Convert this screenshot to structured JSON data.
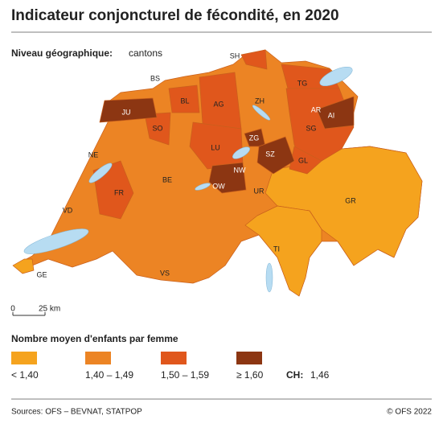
{
  "header": {
    "title": "Indicateur conjoncturel de fécondité, en 2020",
    "subtitle_label": "Niveau géographique:",
    "subtitle_value": "cantons"
  },
  "map": {
    "cantons": [
      "SH",
      "BS",
      "BL",
      "AG",
      "ZH",
      "TG",
      "JU",
      "SO",
      "AR",
      "AI",
      "SG",
      "LU",
      "ZG",
      "SZ",
      "NE",
      "BE",
      "GL",
      "NW",
      "OW",
      "FR",
      "UR",
      "GR",
      "VD",
      "TI",
      "VS",
      "GE"
    ],
    "scale": {
      "start": "0",
      "end": "25 km"
    }
  },
  "legend": {
    "title": "Nombre moyen d'enfants par femme",
    "classes": [
      {
        "label": "< 1,40",
        "color": "#f5a31e"
      },
      {
        "label": "1,40 – 1,49",
        "color": "#ec8424"
      },
      {
        "label": "1,50 – 1,59",
        "color": "#e0571c"
      },
      {
        "label": "≥ 1,60",
        "color": "#8c3612"
      }
    ],
    "total_label": "CH:",
    "total_value": "1,46"
  },
  "footer": {
    "source": "Sources: OFS – BEVNAT, STATPOP",
    "copyright": "© OFS 2022"
  }
}
